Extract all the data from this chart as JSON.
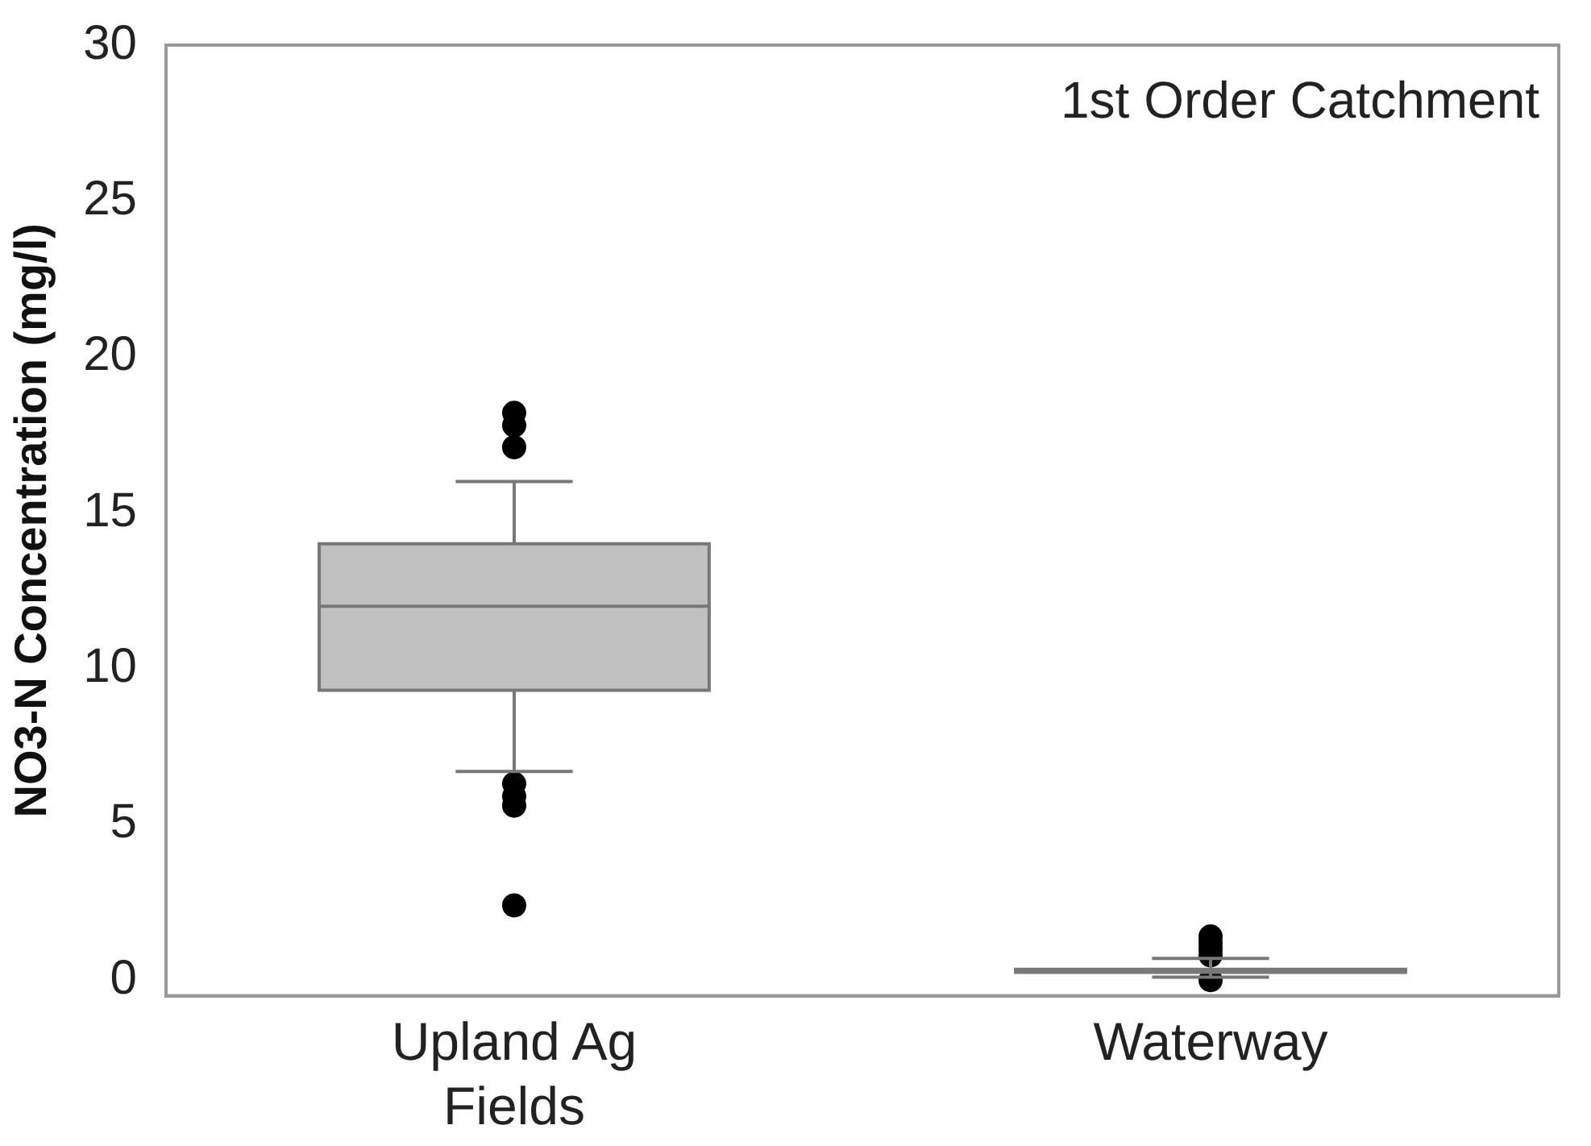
{
  "chart_data": {
    "type": "box",
    "title": "1st Order Catchment",
    "ylabel": "NO3-N Concentration (mg/l)",
    "categories": [
      "Upland Ag Fields",
      "Waterway"
    ],
    "boxes": [
      {
        "low": 6.7,
        "q1": 9.3,
        "median": 12,
        "q3": 14,
        "high": 16,
        "outliers": [
          18.2,
          17.8,
          17.1,
          6.3,
          5.9,
          5.6,
          2.4
        ]
      },
      {
        "low": 0.1,
        "q1": 0.25,
        "median": 0.3,
        "q3": 0.35,
        "high": 0.7,
        "outliers": [
          1.4,
          1.2,
          1.0,
          0.8,
          0.0
        ]
      }
    ],
    "color": "#c0c0c0",
    "ylim": [
      -0.5,
      30
    ],
    "yticks": [
      0,
      5,
      10,
      15,
      20,
      25,
      30
    ],
    "grid": false,
    "legend": false
  }
}
